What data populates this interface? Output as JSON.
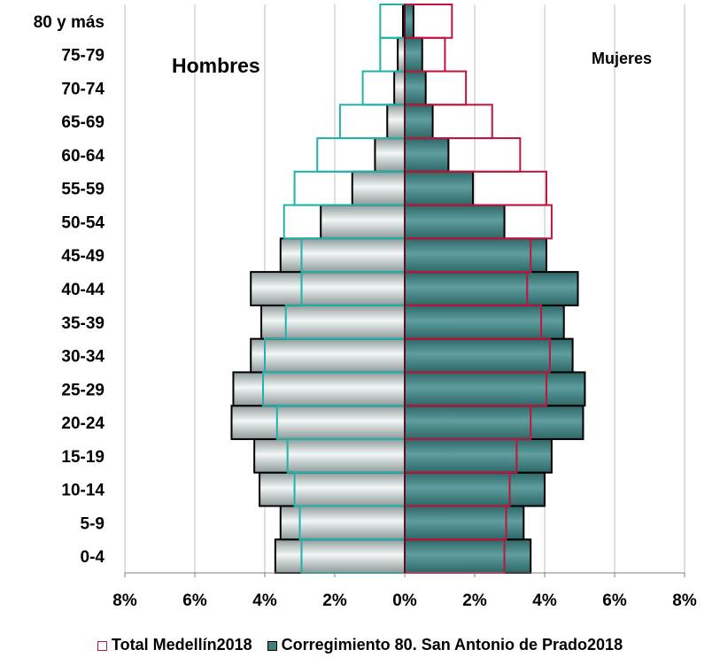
{
  "chart_data": {
    "type": "bar",
    "subtype": "population-pyramid",
    "categories": [
      "0-4",
      "5-9",
      "10-14",
      "15-19",
      "20-24",
      "25-29",
      "30-34",
      "35-39",
      "40-44",
      "45-49",
      "50-54",
      "55-59",
      "60-64",
      "65-69",
      "70-74",
      "75-79",
      "80 y más"
    ],
    "series": [
      {
        "name": "Total Medellín2018",
        "style": "outline",
        "hombres": [
          2.95,
          3.0,
          3.15,
          3.35,
          3.65,
          4.05,
          4.0,
          3.4,
          2.95,
          2.95,
          3.45,
          3.15,
          2.5,
          1.85,
          1.2,
          0.7,
          0.7
        ],
        "mujeres": [
          2.85,
          2.9,
          3.0,
          3.2,
          3.6,
          4.05,
          4.15,
          3.9,
          3.5,
          3.6,
          4.2,
          4.05,
          3.3,
          2.5,
          1.75,
          1.15,
          1.35
        ]
      },
      {
        "name": "Corregimiento 80. San Antonio de Prado2018",
        "style": "filled",
        "hombres": [
          3.7,
          3.55,
          4.15,
          4.3,
          4.95,
          4.9,
          4.4,
          4.1,
          4.4,
          3.55,
          2.4,
          1.5,
          0.85,
          0.5,
          0.3,
          0.2,
          0.05
        ],
        "mujeres": [
          3.6,
          3.4,
          4.0,
          4.2,
          5.1,
          5.15,
          4.8,
          4.55,
          4.95,
          4.05,
          2.85,
          1.95,
          1.25,
          0.8,
          0.6,
          0.5,
          0.25
        ]
      }
    ],
    "xlim": [
      -8,
      8
    ],
    "x_ticks": [
      "8%",
      "6%",
      "4%",
      "2%",
      "0%",
      "2%",
      "4%",
      "6%",
      "8%"
    ],
    "x_tick_values": [
      -8,
      -6,
      -4,
      -2,
      0,
      2,
      4,
      6,
      8
    ],
    "left_label": "Hombres",
    "right_label": "Mujeres",
    "grid": "vertical",
    "legend_position": "bottom",
    "colors": {
      "total_male_outline": "#20B2AA",
      "total_female_outline": "#C0143C",
      "corr_fill_male": "#C8D2D2",
      "corr_fill_female": "#3F7F80",
      "corr_outline": "#000000",
      "grid": "#C0C0C0"
    }
  }
}
